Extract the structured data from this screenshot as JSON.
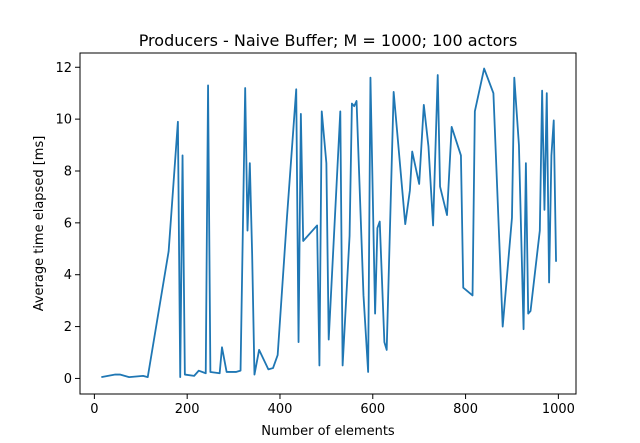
{
  "chart_data": {
    "type": "line",
    "title": "Producers - Naive Buffer; M = 1000; 100 actors",
    "xlabel": "Number of elements",
    "ylabel": "Average time elapsed [ms]",
    "xlim": [
      -31,
      1038
    ],
    "ylim": [
      -0.6,
      12.55
    ],
    "xticks": [
      0,
      200,
      400,
      600,
      800,
      1000
    ],
    "yticks": [
      0,
      2,
      4,
      6,
      8,
      10,
      12
    ],
    "grid": false,
    "legend": "none",
    "series": [
      {
        "color": "#1f77b4",
        "x": [
          15,
          45,
          55,
          75,
          105,
          115,
          160,
          180,
          185,
          190,
          195,
          215,
          225,
          240,
          245,
          250,
          270,
          275,
          285,
          305,
          315,
          325,
          330,
          335,
          340,
          345,
          355,
          375,
          385,
          395,
          415,
          435,
          440,
          445,
          450,
          480,
          485,
          490,
          500,
          505,
          530,
          535,
          550,
          555,
          560,
          565,
          580,
          590,
          595,
          605,
          610,
          615,
          625,
          630,
          645,
          670,
          680,
          685,
          700,
          710,
          720,
          730,
          740,
          745,
          760,
          770,
          790,
          795,
          815,
          820,
          840,
          860,
          880,
          900,
          905,
          915,
          925,
          930,
          935,
          940,
          960,
          965,
          970,
          975,
          980,
          985,
          990,
          995
        ],
        "y": [
          0.05,
          0.15,
          0.15,
          0.05,
          0.1,
          0.05,
          4.9,
          9.9,
          0.05,
          8.6,
          0.15,
          0.1,
          0.3,
          0.2,
          11.3,
          0.25,
          0.2,
          1.2,
          0.25,
          0.25,
          0.3,
          11.2,
          5.7,
          8.3,
          4.8,
          0.15,
          1.1,
          0.35,
          0.4,
          0.9,
          6.2,
          11.15,
          1.4,
          10.2,
          5.3,
          5.9,
          0.5,
          10.3,
          8.3,
          1.5,
          10.3,
          0.5,
          5.5,
          10.6,
          10.5,
          10.7,
          3.2,
          0.25,
          11.6,
          2.5,
          5.8,
          6.05,
          1.4,
          1.1,
          11.05,
          5.95,
          7.25,
          8.75,
          7.5,
          10.55,
          8.95,
          5.9,
          11.7,
          7.4,
          6.3,
          9.7,
          8.6,
          3.5,
          3.2,
          10.3,
          11.95,
          11.0,
          2.0,
          6.2,
          11.6,
          9.0,
          1.9,
          8.3,
          2.5,
          2.6,
          5.7,
          11.1,
          6.5,
          11.0,
          3.7,
          8.6,
          9.95,
          4.5
        ]
      }
    ]
  }
}
